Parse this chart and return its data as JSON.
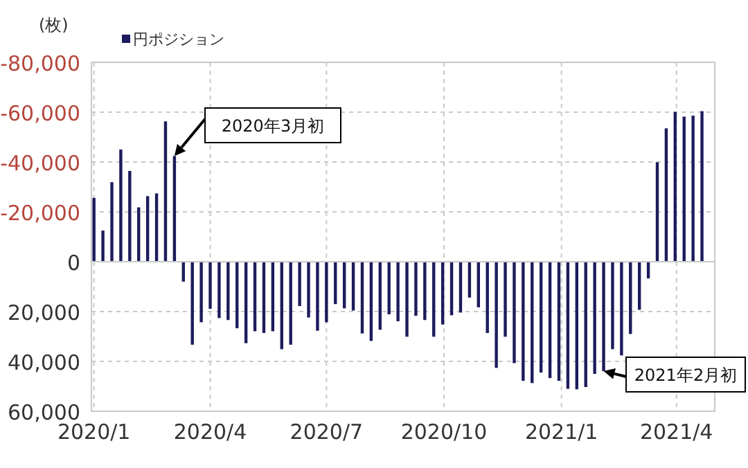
{
  "chart_data": {
    "type": "bar",
    "ylabel": "(枚)",
    "legend": "top",
    "grid": true,
    "xlim": [
      "2020-01-05",
      "2021-05-07"
    ],
    "xticks": [
      {
        "value": "2020-01-07",
        "label": "2020/1"
      },
      {
        "value": "2020-04-07",
        "label": "2020/4"
      },
      {
        "value": "2020-07-07",
        "label": "2020/7"
      },
      {
        "value": "2020-10-07",
        "label": "2020/10"
      },
      {
        "value": "2021-01-07",
        "label": "2021/1"
      },
      {
        "value": "2021-04-07",
        "label": "2021/4"
      }
    ],
    "ylim": [
      60000,
      -80000
    ],
    "yticks": [
      {
        "value": -80000,
        "label": "-80,000"
      },
      {
        "value": -60000,
        "label": "-60,000"
      },
      {
        "value": -40000,
        "label": "-40,000"
      },
      {
        "value": -20000,
        "label": "-20,000"
      },
      0,
      {
        "value": 20000,
        "label": "20,000"
      },
      {
        "value": 40000,
        "label": "40,000"
      },
      {
        "value": 60000,
        "label": "60,000"
      }
    ],
    "x": [
      "2020-01-07",
      "2020-01-14",
      "2020-01-21",
      "2020-01-28",
      "2020-02-04",
      "2020-02-11",
      "2020-02-18",
      "2020-02-25",
      "2020-03-03",
      "2020-03-10",
      "2020-03-17",
      "2020-03-24",
      "2020-03-31",
      "2020-04-07",
      "2020-04-14",
      "2020-04-21",
      "2020-04-28",
      "2020-05-05",
      "2020-05-12",
      "2020-05-19",
      "2020-05-26",
      "2020-06-02",
      "2020-06-09",
      "2020-06-16",
      "2020-06-23",
      "2020-06-30",
      "2020-07-07",
      "2020-07-14",
      "2020-07-21",
      "2020-07-28",
      "2020-08-04",
      "2020-08-11",
      "2020-08-18",
      "2020-08-25",
      "2020-09-01",
      "2020-09-08",
      "2020-09-15",
      "2020-09-22",
      "2020-09-29",
      "2020-10-06",
      "2020-10-13",
      "2020-10-20",
      "2020-10-27",
      "2020-11-03",
      "2020-11-10",
      "2020-11-17",
      "2020-11-24",
      "2020-12-01",
      "2020-12-08",
      "2020-12-15",
      "2020-12-22",
      "2020-12-29",
      "2021-01-05",
      "2021-01-12",
      "2021-01-19",
      "2021-01-26",
      "2021-02-02",
      "2021-02-09",
      "2021-02-16",
      "2021-02-23",
      "2021-03-02",
      "2021-03-09",
      "2021-03-16",
      "2021-03-23",
      "2021-03-30",
      "2021-04-06",
      "2021-04-13",
      "2021-04-20",
      "2021-04-27"
    ],
    "series": [
      {
        "name": "円ポジション",
        "color": "#1c1c5c",
        "values": [
          -25600,
          -12500,
          -31900,
          -45000,
          -36400,
          -21800,
          -26300,
          -27400,
          -56300,
          -42400,
          8000,
          33300,
          24300,
          18900,
          22600,
          23400,
          26700,
          32700,
          27900,
          28600,
          27900,
          35100,
          33300,
          17800,
          22400,
          27700,
          24300,
          17000,
          18700,
          19600,
          28800,
          31800,
          27300,
          21100,
          23900,
          30100,
          21700,
          23400,
          30100,
          25200,
          21500,
          20400,
          14400,
          18300,
          28600,
          42600,
          30100,
          40700,
          47800,
          48700,
          44500,
          46700,
          47800,
          51000,
          51200,
          50300,
          45000,
          43900,
          35100,
          37600,
          29000,
          19300,
          6700,
          -39900,
          -53500,
          -60100,
          -58200,
          -58600,
          -60400
        ]
      }
    ],
    "annotations": [
      {
        "text": "2020年3月初",
        "x": "2020-03-10",
        "y": -42400
      },
      {
        "text": "2021年2月初",
        "x": "2021-02-09",
        "y": 43900
      }
    ]
  }
}
